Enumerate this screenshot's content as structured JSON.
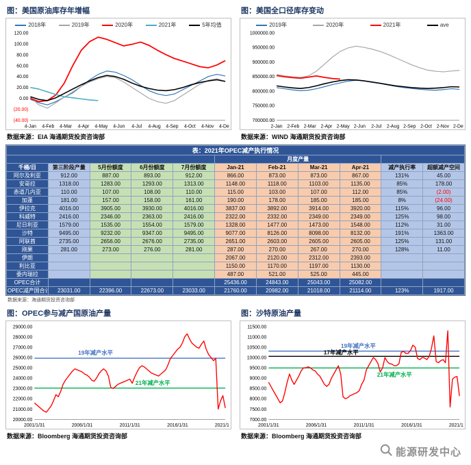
{
  "watermark": {
    "label": "能源研发中心"
  },
  "table": {
    "title": "表：2021年OPEC减产执行情况",
    "month_group_header": "月度产量",
    "columns": [
      "千桶/日",
      "第三阶段产量",
      "5月份额度",
      "6月份额度",
      "7月份额度",
      "Jan-21",
      "Feb-21",
      "Mar-21",
      "Apr-21",
      "减产执行率",
      "超额减产空间"
    ],
    "rows": [
      {
        "type": "normal",
        "cells": [
          "阿尔及利亚",
          "912.00",
          "887.00",
          "893.00",
          "912.00",
          "866.00",
          "873.00",
          "873.00",
          "867.00",
          "131%",
          "45.00"
        ]
      },
      {
        "type": "normal",
        "cells": [
          "安哥拉",
          "1318.00",
          "1283.00",
          "1293.00",
          "1313.00",
          "1148.00",
          "1118.00",
          "1103.00",
          "1135.00",
          "85%",
          "178.00"
        ]
      },
      {
        "type": "normal",
        "cells": [
          "赤道几内亚",
          "110.00",
          "107.00",
          "108.00",
          "110.00",
          "115.00",
          "103.00",
          "107.00",
          "112.00",
          "85%",
          "(2.00)"
        ]
      },
      {
        "type": "normal",
        "cells": [
          "加蓬",
          "181.00",
          "157.00",
          "158.00",
          "161.00",
          "190.00",
          "178.00",
          "185.00",
          "185.00",
          "8%",
          "(24.00)"
        ]
      },
      {
        "type": "normal",
        "cells": [
          "伊拉克",
          "4016.00",
          "3905.00",
          "3930.00",
          "4016.00",
          "3837.00",
          "3892.00",
          "3914.00",
          "3920.00",
          "115%",
          "96.00"
        ]
      },
      {
        "type": "normal",
        "cells": [
          "科威特",
          "2416.00",
          "2346.00",
          "2363.00",
          "2416.00",
          "2322.00",
          "2332.00",
          "2349.00",
          "2349.00",
          "125%",
          "98.00"
        ]
      },
      {
        "type": "normal",
        "cells": [
          "尼日利亚",
          "1579.00",
          "1535.00",
          "1554.00",
          "1579.00",
          "1328.00",
          "1477.00",
          "1473.00",
          "1548.00",
          "112%",
          "31.00"
        ]
      },
      {
        "type": "normal",
        "cells": [
          "沙特",
          "9495.00",
          "9232.00",
          "9347.00",
          "9495.00",
          "9077.00",
          "8126.00",
          "8098.00",
          "8132.00",
          "191%",
          "1363.00"
        ]
      },
      {
        "type": "normal",
        "cells": [
          "阿联酋",
          "2735.00",
          "2656.00",
          "2676.00",
          "2735.00",
          "2651.00",
          "2603.00",
          "2605.00",
          "2605.00",
          "125%",
          "131.00"
        ]
      },
      {
        "type": "normal",
        "cells": [
          "刚果",
          "281.00",
          "273.00",
          "276.00",
          "281.00",
          "287.00",
          "270.00",
          "267.00",
          "270.00",
          "128%",
          "11.00"
        ]
      },
      {
        "type": "normal",
        "cells": [
          "伊朗",
          "",
          "",
          "",
          "",
          "2067.00",
          "2120.00",
          "2312.00",
          "2393.00",
          "",
          ""
        ]
      },
      {
        "type": "normal",
        "cells": [
          "利比亚",
          "",
          "",
          "",
          "",
          "1150.00",
          "1170.00",
          "1197.00",
          "1130.00",
          "",
          ""
        ]
      },
      {
        "type": "normal",
        "cells": [
          "委内瑞拉",
          "",
          "",
          "",
          "",
          "487.00",
          "521.00",
          "525.00",
          "445.00",
          "",
          ""
        ]
      },
      {
        "type": "total",
        "cells": [
          "OPEC合计",
          "",
          "",
          "",
          "",
          "25436.00",
          "24843.00",
          "25043.00",
          "25082.00",
          "",
          ""
        ]
      },
      {
        "type": "total",
        "cells": [
          "OPEC减产国合计",
          "23031.00",
          "22396.00",
          "22673.00",
          "23033.00",
          "21760.00",
          "20982.00",
          "21018.00",
          "21114.00",
          "123%",
          "1917.00"
        ]
      }
    ],
    "note": "数据来源：海通期货投资咨询部"
  },
  "chart_data": [
    {
      "type": "line",
      "title": "图：美国原油库存年增幅",
      "source": "数据来源：EIA 海通期货投资咨询部",
      "ylim": [
        -40,
        120
      ],
      "yticks": [
        -40,
        -20,
        0,
        20,
        40,
        60,
        80,
        100,
        120
      ],
      "x_labels": [
        "4-Jan",
        "4-Feb",
        "4-Mar",
        "4-Apr",
        "4-May",
        "4-Jun",
        "4-Jul",
        "4-Aug",
        "4-Sep",
        "4-Oct",
        "4-Nov",
        "4-Dec"
      ],
      "ml": 34,
      "height": 150,
      "series": [
        {
          "name": "2018年",
          "color": "#2E75B6",
          "values": [
            -2,
            -8,
            -12,
            -6,
            2,
            10,
            22,
            34,
            44,
            50,
            48,
            42,
            34,
            24,
            14,
            8,
            5,
            8,
            16,
            24,
            32,
            40,
            44,
            41
          ]
        },
        {
          "name": "2019年",
          "color": "#A6A6A6",
          "values": [
            2,
            -12,
            -18,
            -8,
            2,
            12,
            22,
            30,
            36,
            40,
            38,
            30,
            20,
            10,
            0,
            -6,
            -9,
            -4,
            6,
            16,
            26,
            33,
            36,
            31
          ]
        },
        {
          "name": "2020年",
          "color": "#FF0000",
          "width": 1.8,
          "values": [
            0,
            -6,
            -4,
            6,
            28,
            60,
            88,
            104,
            112,
            108,
            102,
            96,
            99,
            103,
            97,
            88,
            80,
            73,
            68,
            63,
            58,
            56,
            61,
            69
          ]
        },
        {
          "name": "2021年",
          "color": "#4BACC6",
          "width": 1.6,
          "values": [
            20,
            17,
            12,
            7,
            3,
            1,
            -1,
            -3,
            -4
          ]
        },
        {
          "name": "5年均值",
          "color": "#000000",
          "width": 1.6,
          "values": [
            3,
            -2,
            -4,
            1,
            9,
            17,
            25,
            32,
            38,
            42,
            40,
            35,
            28,
            22,
            18,
            15,
            14,
            16,
            20,
            25,
            29,
            32,
            34,
            31
          ]
        }
      ]
    },
    {
      "type": "line",
      "title": "图：美国全口径库存变动",
      "source": "数据来源：WIND 海通期货投资咨询部",
      "ylim": [
        700000,
        1000000
      ],
      "yticks": [
        700000,
        750000,
        800000,
        850000,
        900000,
        950000,
        1000000
      ],
      "x_labels": [
        "2-Jan",
        "2-Feb",
        "2-Mar",
        "2-Apr",
        "2-May",
        "2-Jun",
        "2-Jul",
        "2-Aug",
        "2-Sep",
        "2-Oct",
        "2-Nov",
        "2-Dec"
      ],
      "ml": 52,
      "height": 150,
      "series": [
        {
          "name": "2019年",
          "color": "#2E75B6",
          "values": [
            812000,
            808000,
            804000,
            801000,
            803000,
            808000,
            815000,
            822000,
            828000,
            834000,
            837000,
            835000,
            830000,
            826000,
            821000,
            816000,
            812000,
            809000,
            806000,
            804000,
            803000,
            805000,
            808000,
            806000
          ]
        },
        {
          "name": "2020年",
          "color": "#A6A6A6",
          "values": [
            857000,
            852000,
            849000,
            847000,
            852000,
            868000,
            892000,
            916000,
            936000,
            948000,
            954000,
            950000,
            944000,
            936000,
            926000,
            914000,
            902000,
            890000,
            880000,
            872000,
            868000,
            866000,
            869000,
            871000
          ]
        },
        {
          "name": "2021年",
          "color": "#FF0000",
          "width": 1.8,
          "values": [
            853000,
            849000,
            846000,
            844000,
            848000,
            852000,
            847000,
            843000,
            841000
          ]
        },
        {
          "name": "ave",
          "color": "#000000",
          "width": 1.6,
          "values": [
            818000,
            814000,
            811000,
            809000,
            812000,
            818000,
            825000,
            831000,
            836000,
            839000,
            838000,
            835000,
            831000,
            827000,
            822000,
            818000,
            815000,
            812000,
            810000,
            809000,
            810000,
            812000,
            815000,
            814000
          ]
        }
      ]
    },
    {
      "type": "line",
      "title": "图：OPEC参与减产国原油产量",
      "source": "数据来源：Bloomberg 海通期货投资咨询部",
      "ylim": [
        20000,
        29000
      ],
      "yticks": [
        20000,
        21000,
        22000,
        23000,
        24000,
        25000,
        26000,
        27000,
        28000,
        29000
      ],
      "x_labels": [
        "2001/1/31",
        "2006/1/31",
        "2011/1/31",
        "2016/1/31",
        "2021/1/31"
      ],
      "ml": 40,
      "height": 158,
      "series": [
        {
          "name": "OPEC参与减产国原油产量",
          "color": "#FF0000",
          "width": 1.4,
          "values": [
            21600,
            21400,
            21200,
            21000,
            20800,
            20700,
            21000,
            21300,
            21800,
            22400,
            22200,
            22700,
            23400,
            23800,
            24100,
            24400,
            24700,
            24900,
            24800,
            24700,
            24600,
            24400,
            24300,
            24100,
            23800,
            23700,
            24000,
            24400,
            24700,
            24900,
            24700,
            24200,
            23100,
            23000,
            23200,
            23400,
            23500,
            23600,
            23700,
            23800,
            23900,
            23500,
            24100,
            24600,
            25000,
            25200,
            25100,
            24900,
            24700,
            24500,
            24400,
            24300,
            24200,
            24400,
            24600,
            24800,
            25300,
            25900,
            26200,
            26500,
            26800,
            27000,
            27400,
            28000,
            28300,
            27800,
            27400,
            27200,
            27000,
            26900,
            27300,
            27600,
            26800,
            26300,
            26000,
            25700,
            25900,
            21000,
            21800,
            22300,
            21100
          ]
        }
      ],
      "ref_lines": [
        {
          "value": 25937,
          "color": "#4472C4"
        },
        {
          "value": 23033,
          "color": "#00B050"
        }
      ],
      "annotations": [
        {
          "text": "19年减产水平",
          "fx": 0.32,
          "value": 25937,
          "dy": -5,
          "color": "#4472C4"
        },
        {
          "text": "21年减产水平",
          "fx": 0.62,
          "value": 23033,
          "dy": -5,
          "color": "#00B050"
        }
      ]
    },
    {
      "type": "line",
      "title": "图：沙特原油产量",
      "source": "数据来源：Bloomberg 海通期货投资咨询部",
      "ylim": [
        7000,
        11500
      ],
      "yticks": [
        7000,
        7500,
        8000,
        8500,
        9000,
        9500,
        10000,
        10500,
        11000,
        11500
      ],
      "x_labels": [
        "2001/1/31",
        "2006/1/31",
        "2011/1/31",
        "2016/1/31",
        "2021/1/31"
      ],
      "ml": 40,
      "height": 158,
      "series": [
        {
          "name": "沙特原油产量",
          "color": "#FF0000",
          "width": 1.4,
          "values": [
            8800,
            8600,
            8400,
            8200,
            8000,
            7800,
            7900,
            8300,
            8800,
            9200,
            8900,
            8700,
            8900,
            9100,
            9350,
            9500,
            9500,
            9550,
            9500,
            9400,
            9350,
            9200,
            9100,
            8900,
            8700,
            8600,
            8700,
            9000,
            9200,
            9400,
            9600,
            9200,
            8100,
            8000,
            8050,
            8150,
            8200,
            8250,
            8300,
            8400,
            8700,
            8900,
            9400,
            9600,
            9800,
            10000,
            9900,
            9700,
            9300,
            9500,
            10000,
            9800,
            9700,
            9680,
            9600,
            9610,
            9700,
            10250,
            10300,
            10200,
            10200,
            10350,
            10600,
            10500,
            9950,
            9900,
            10000,
            9980,
            9900,
            10050,
            10450,
            11050,
            9800,
            9750,
            9850,
            9900,
            9750,
            11300,
            7600,
            8950,
            9050,
            9077,
            8130
          ]
        }
      ],
      "ref_lines": [
        {
          "value": 10311,
          "color": "#4472C4"
        },
        {
          "value": 10058,
          "color": "#000000"
        },
        {
          "value": 9495,
          "color": "#00B050"
        }
      ],
      "annotations": [
        {
          "text": "19年减产水平",
          "fx": 0.47,
          "value": 10311,
          "dy": -5,
          "color": "#4472C4"
        },
        {
          "text": "17年减产水平",
          "fx": 0.38,
          "value": 10058,
          "dy": -3,
          "color": "#000000"
        },
        {
          "text": "21年减产水平",
          "fx": 0.66,
          "value": 9495,
          "dy": 13,
          "color": "#00B050"
        }
      ]
    }
  ]
}
